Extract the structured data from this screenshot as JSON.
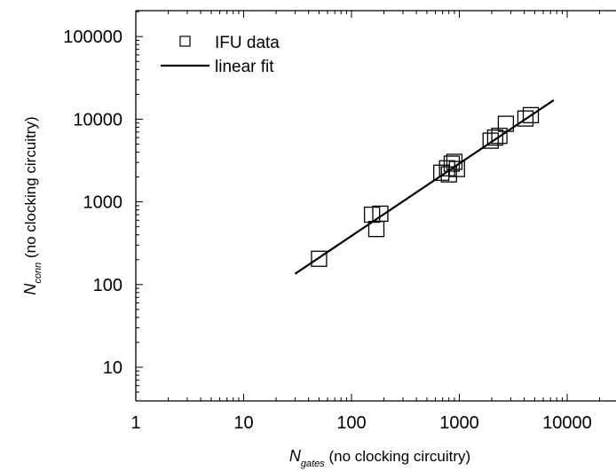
{
  "chart_data": {
    "type": "scatter",
    "x_scale": "log",
    "y_scale": "log",
    "xlim": [
      1,
      25000
    ],
    "ylim": [
      4,
      200000
    ],
    "grid": false,
    "legend_position": "top-left",
    "x_ticks": [
      "1",
      "10",
      "100",
      "1000",
      "10000"
    ],
    "y_ticks": [
      "10",
      "100",
      "1000",
      "10000",
      "100000"
    ],
    "xlabel": {
      "symbol": "N",
      "subscript": "gates",
      "text": " (no clocking circuitry)"
    },
    "ylabel": {
      "symbol": "N",
      "subscript": "conn",
      "text": " (no clocking circuitry)"
    },
    "series": [
      {
        "name": "IFU data",
        "marker": "open-square",
        "color": "#000000",
        "points": [
          {
            "x": 50,
            "y": 205
          },
          {
            "x": 155,
            "y": 700
          },
          {
            "x": 170,
            "y": 470
          },
          {
            "x": 185,
            "y": 720
          },
          {
            "x": 680,
            "y": 2250
          },
          {
            "x": 770,
            "y": 2550
          },
          {
            "x": 800,
            "y": 2150
          },
          {
            "x": 850,
            "y": 2900
          },
          {
            "x": 900,
            "y": 3050
          },
          {
            "x": 950,
            "y": 2500
          },
          {
            "x": 1950,
            "y": 5500
          },
          {
            "x": 2150,
            "y": 6000
          },
          {
            "x": 2350,
            "y": 6300
          },
          {
            "x": 2700,
            "y": 8800
          },
          {
            "x": 4100,
            "y": 10200
          },
          {
            "x": 4600,
            "y": 11200
          }
        ]
      },
      {
        "name": "linear fit",
        "type": "line",
        "color": "#000000",
        "points": [
          {
            "x": 30,
            "y": 135
          },
          {
            "x": 7500,
            "y": 17000
          }
        ]
      }
    ]
  }
}
